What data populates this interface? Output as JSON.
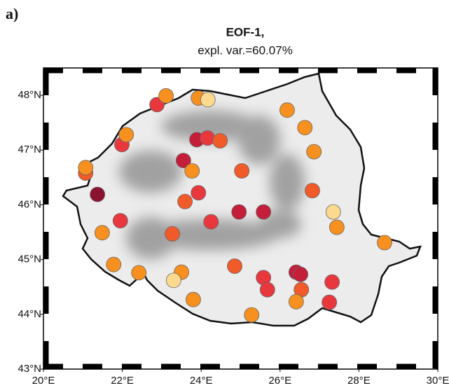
{
  "panel_label": "a)",
  "chart_data": {
    "type": "scatter",
    "title": "EOF-1,",
    "subtitle": "expl. var.=60.07%",
    "xlim": [
      20,
      30
    ],
    "ylim": [
      43,
      48.5
    ],
    "xticks": [
      {
        "value": 20,
        "label": "20°E"
      },
      {
        "value": 22,
        "label": "22°E"
      },
      {
        "value": 24,
        "label": "24°E"
      },
      {
        "value": 26,
        "label": "26°E"
      },
      {
        "value": 28,
        "label": "28°E"
      },
      {
        "value": 30,
        "label": "30°E"
      }
    ],
    "yticks": [
      {
        "value": 43,
        "label": "43°N"
      },
      {
        "value": 44,
        "label": "44°N"
      },
      {
        "value": 45,
        "label": "45°N"
      },
      {
        "value": 46,
        "label": "46°N"
      },
      {
        "value": 47,
        "label": "47°N"
      },
      {
        "value": 48,
        "label": "48°N"
      }
    ],
    "series": [
      {
        "color": "#8b1230",
        "x": [
          21.37
        ],
        "values": [
          46.19
        ]
      },
      {
        "color": "#c41e3a",
        "x": [
          24.96,
          25.58,
          23.55,
          23.89,
          26.41,
          26.52
        ],
        "values": [
          45.87,
          45.87,
          46.81,
          47.19,
          44.77,
          44.73
        ]
      },
      {
        "color": "#e8383d",
        "x": [
          22.88,
          24.16,
          23.93,
          24.25,
          21.95,
          25.58,
          25.68,
          27.32,
          27.25,
          21.99
        ],
        "values": [
          47.83,
          47.22,
          46.22,
          45.69,
          45.71,
          44.67,
          44.45,
          44.59,
          44.22,
          47.1
        ]
      },
      {
        "color": "#f15a29",
        "x": [
          24.48,
          25.03,
          23.59,
          26.82,
          23.27,
          24.85,
          26.54,
          21.07
        ],
        "values": [
          47.17,
          46.62,
          46.06,
          46.26,
          45.47,
          44.88,
          44.45,
          46.58
        ]
      },
      {
        "color": "#f7901e",
        "x": [
          23.11,
          23.93,
          26.18,
          26.63,
          22.1,
          26.86,
          23.77,
          21.07,
          21.49,
          27.44,
          28.65,
          21.78,
          22.42,
          23.5,
          23.8,
          26.41,
          25.28
        ],
        "values": [
          47.99,
          47.95,
          47.73,
          47.41,
          47.28,
          46.97,
          46.62,
          46.68,
          45.49,
          45.59,
          45.31,
          44.91,
          44.76,
          44.77,
          44.27,
          44.23,
          43.99
        ]
      },
      {
        "color": "#fcd98f",
        "x": [
          24.17,
          27.35,
          23.3
        ],
        "values": [
          47.92,
          45.87,
          44.62
        ]
      }
    ]
  }
}
